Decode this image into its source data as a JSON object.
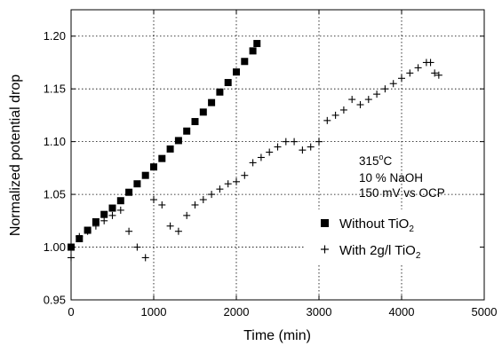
{
  "chart_data": {
    "type": "scatter",
    "title": "",
    "xlabel": "Time (min)",
    "ylabel": "Normalized potential drop",
    "xlim": [
      0,
      5000
    ],
    "ylim": [
      0.95,
      1.225
    ],
    "xticks": [
      0,
      1000,
      2000,
      3000,
      4000,
      5000
    ],
    "xtick_labels": [
      "0",
      "1000",
      "2000",
      "3000",
      "4000",
      "5000"
    ],
    "yticks": [
      0.95,
      1.0,
      1.05,
      1.1,
      1.15,
      1.2
    ],
    "ytick_labels": [
      "0.95",
      "1.00",
      "1.05",
      "1.10",
      "1.15",
      "1.20"
    ],
    "grid": true,
    "legend_position": "lower-right",
    "annotations": {
      "temperature": {
        "main": "315",
        "sup": "o",
        "tail": "C"
      },
      "line2": "10 % NaOH",
      "line3": "150 mV vs OCP"
    },
    "series": [
      {
        "name": "Without TiO2",
        "legend": {
          "main": "Without TiO",
          "sub": "2"
        },
        "marker": "square",
        "color": "#000000",
        "x": [
          0,
          100,
          200,
          300,
          400,
          500,
          600,
          700,
          800,
          900,
          1000,
          1100,
          1200,
          1300,
          1400,
          1500,
          1600,
          1700,
          1800,
          1900,
          2000,
          2100,
          2200,
          2250
        ],
        "y": [
          1.0,
          1.008,
          1.016,
          1.024,
          1.031,
          1.037,
          1.044,
          1.052,
          1.06,
          1.068,
          1.076,
          1.084,
          1.093,
          1.101,
          1.11,
          1.119,
          1.128,
          1.137,
          1.147,
          1.156,
          1.166,
          1.176,
          1.186,
          1.193
        ]
      },
      {
        "name": "With 2g/l TiO2",
        "legend": {
          "main": "With 2g/l TiO",
          "sub": "2"
        },
        "marker": "plus",
        "color": "#000000",
        "x": [
          0,
          100,
          200,
          300,
          400,
          500,
          600,
          700,
          800,
          900,
          1000,
          1100,
          1200,
          1300,
          1400,
          1500,
          1600,
          1700,
          1800,
          1900,
          2000,
          2100,
          2200,
          2300,
          2400,
          2500,
          2600,
          2700,
          2800,
          2900,
          3000,
          3100,
          3200,
          3300,
          3400,
          3500,
          3600,
          3700,
          3800,
          3900,
          4000,
          4100,
          4200,
          4300,
          4350,
          4400,
          4450
        ],
        "y": [
          0.99,
          1.01,
          1.015,
          1.02,
          1.025,
          1.03,
          1.035,
          1.015,
          1.0,
          0.99,
          1.045,
          1.04,
          1.02,
          1.015,
          1.03,
          1.04,
          1.045,
          1.05,
          1.055,
          1.06,
          1.062,
          1.068,
          1.08,
          1.085,
          1.09,
          1.095,
          1.1,
          1.1,
          1.092,
          1.095,
          1.1,
          1.12,
          1.125,
          1.13,
          1.14,
          1.135,
          1.14,
          1.145,
          1.15,
          1.155,
          1.16,
          1.165,
          1.17,
          1.175,
          1.175,
          1.165,
          1.163
        ]
      }
    ]
  }
}
